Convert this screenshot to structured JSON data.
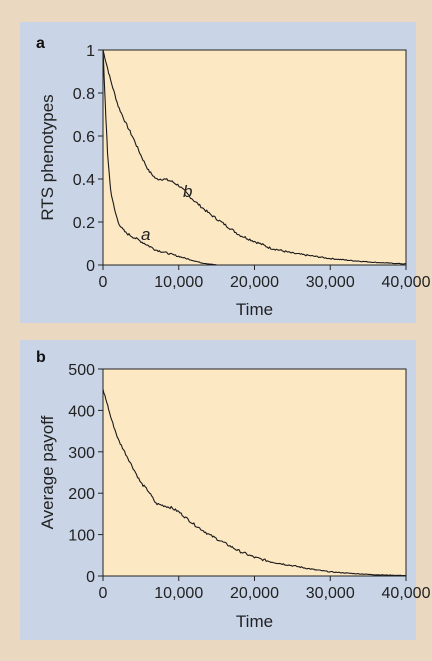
{
  "chart_data": [
    {
      "panel": "a",
      "type": "line",
      "xlabel": "Time",
      "ylabel": "RTS phenotypes",
      "xlim": [
        0,
        40000
      ],
      "ylim": [
        0,
        1
      ],
      "xticks": [
        0,
        10000,
        20000,
        30000,
        40000
      ],
      "xtick_labels": [
        "0",
        "10,000",
        "20,000",
        "30,000",
        "40,000"
      ],
      "yticks": [
        0,
        0.2,
        0.4,
        0.6,
        0.8,
        1
      ],
      "ytick_labels": [
        "0",
        "0.2",
        "0.4",
        "0.6",
        "0.8",
        "1"
      ],
      "plot_bg": "#fde8c4",
      "panel_bg": "#c9d5e6",
      "line_color": "#1a1a1a",
      "grid": false,
      "series": [
        {
          "name": "b",
          "x": [
            0,
            500,
            1000,
            2000,
            3000,
            4000,
            5000,
            6000,
            7000,
            8000,
            9000,
            10000,
            12000,
            14000,
            16000,
            18000,
            20000,
            22000,
            25000,
            28000,
            30000,
            33000,
            36000,
            40000
          ],
          "y": [
            1.0,
            0.93,
            0.86,
            0.74,
            0.66,
            0.59,
            0.51,
            0.44,
            0.4,
            0.4,
            0.39,
            0.37,
            0.3,
            0.24,
            0.19,
            0.14,
            0.11,
            0.08,
            0.055,
            0.04,
            0.03,
            0.02,
            0.012,
            0.005
          ]
        },
        {
          "name": "a",
          "x": [
            0,
            300,
            600,
            1000,
            1500,
            2000,
            2500,
            3000,
            4000,
            5000,
            6000,
            7000,
            8000,
            9000,
            10000,
            11000,
            12000,
            13000,
            14000,
            15000
          ],
          "y": [
            1.0,
            0.75,
            0.52,
            0.35,
            0.26,
            0.2,
            0.17,
            0.15,
            0.13,
            0.11,
            0.09,
            0.07,
            0.06,
            0.05,
            0.04,
            0.03,
            0.02,
            0.01,
            0.005,
            0.0
          ]
        }
      ]
    },
    {
      "panel": "b",
      "type": "line",
      "xlabel": "Time",
      "ylabel": "Average payoff",
      "xlim": [
        0,
        40000
      ],
      "ylim": [
        0,
        500
      ],
      "xticks": [
        0,
        10000,
        20000,
        30000,
        40000
      ],
      "xtick_labels": [
        "0",
        "10,000",
        "20,000",
        "30,000",
        "40,000"
      ],
      "yticks": [
        0,
        100,
        200,
        300,
        400,
        500
      ],
      "ytick_labels": [
        "0",
        "100",
        "200",
        "300",
        "400",
        "500"
      ],
      "plot_bg": "#fde8c4",
      "panel_bg": "#c9d5e6",
      "line_color": "#1a1a1a",
      "grid": false,
      "series": [
        {
          "x": [
            0,
            500,
            1000,
            2000,
            3000,
            4000,
            5000,
            6000,
            7000,
            8000,
            9000,
            10000,
            12000,
            14000,
            16000,
            18000,
            20000,
            22000,
            25000,
            28000,
            30000,
            33000,
            36000,
            40000
          ],
          "y": [
            450,
            420,
            385,
            330,
            295,
            260,
            225,
            205,
            175,
            170,
            165,
            155,
            125,
            100,
            80,
            60,
            45,
            35,
            25,
            15,
            10,
            6,
            3,
            1
          ]
        }
      ]
    }
  ]
}
